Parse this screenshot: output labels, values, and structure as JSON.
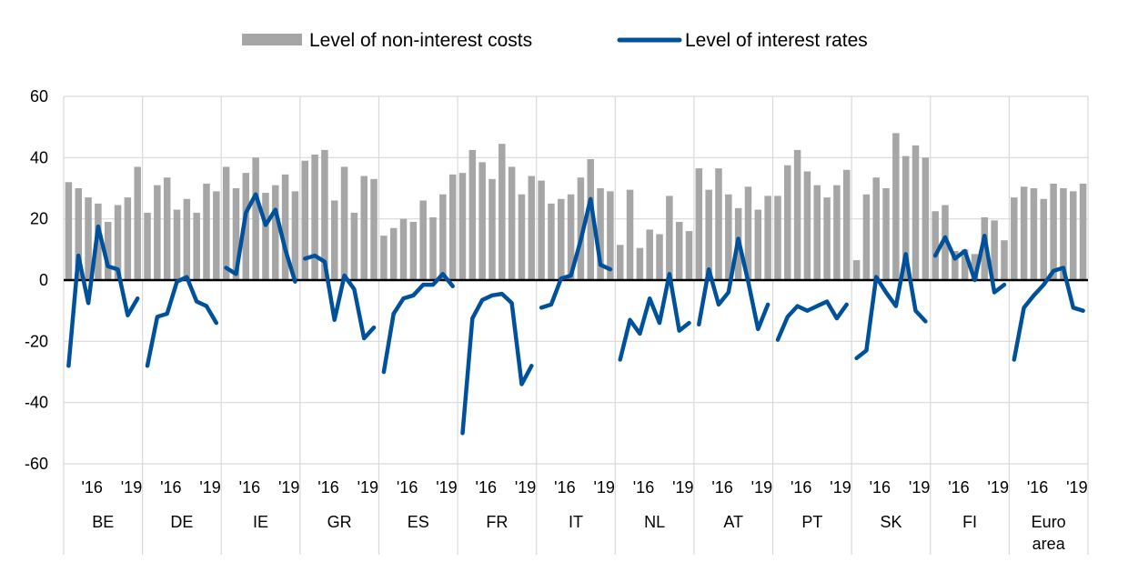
{
  "chart_data": {
    "type": "bar+line",
    "ylim": [
      -60,
      60
    ],
    "yticks": [
      -60,
      -40,
      -20,
      0,
      20,
      40,
      60
    ],
    "grid": true,
    "legend_position": "top",
    "colors": {
      "bars": "#a6a6a6",
      "line": "#00519b",
      "zero_line": "#000000",
      "grid": "#d9d9d9"
    },
    "legend": [
      {
        "label": "Level of non-interest costs",
        "kind": "bar"
      },
      {
        "label": "Level of interest rates",
        "kind": "line"
      }
    ],
    "year_ticks": [
      "'16",
      "'19"
    ],
    "groups": [
      {
        "label": "BE",
        "bars": [
          32,
          30,
          27,
          25,
          19,
          24.5,
          27,
          37
        ],
        "line": [
          -28,
          8,
          -7.5,
          17.5,
          4.5,
          3.5,
          -11.5,
          -6
        ]
      },
      {
        "label": "DE",
        "bars": [
          22,
          31,
          33.5,
          23,
          26.5,
          22,
          31.5,
          29
        ],
        "line": [
          -28,
          -12,
          -11,
          -0.5,
          1,
          -7,
          -8.5,
          -14
        ]
      },
      {
        "label": "IE",
        "bars": [
          37,
          30,
          35,
          40,
          28.5,
          31,
          34.5,
          29
        ],
        "line": [
          4,
          2,
          22,
          28,
          18,
          23,
          10,
          -0.5
        ]
      },
      {
        "label": "GR",
        "bars": [
          39,
          41,
          42.5,
          26,
          37,
          22,
          34,
          33
        ],
        "line": [
          7,
          8,
          6,
          -13,
          1.5,
          -3,
          -19,
          -15.5
        ]
      },
      {
        "label": "ES",
        "bars": [
          14.5,
          17,
          20,
          19,
          26,
          20.5,
          28,
          34.5
        ],
        "line": [
          -30,
          -11,
          -6,
          -5,
          -1.5,
          -1.5,
          2,
          -2
        ]
      },
      {
        "label": "FR",
        "bars": [
          35,
          42.5,
          38.5,
          33,
          44.5,
          37,
          28,
          34
        ],
        "line": [
          -50,
          -12.5,
          -6.5,
          -5,
          -4.5,
          -7.5,
          -34,
          -28
        ]
      },
      {
        "label": "IT",
        "bars": [
          32.5,
          25,
          26.5,
          28,
          33.5,
          39.5,
          30,
          29
        ],
        "line": [
          -9,
          -8,
          0.5,
          1.5,
          13,
          26.5,
          5,
          3.5
        ]
      },
      {
        "label": "NL",
        "bars": [
          11.5,
          29.5,
          10.5,
          16.5,
          15,
          27.5,
          19,
          16
        ],
        "line": [
          -26,
          -13,
          -17.5,
          -6,
          -14,
          2,
          -16.5,
          -14
        ]
      },
      {
        "label": "AT",
        "bars": [
          36.5,
          29.5,
          36.5,
          28,
          23.5,
          30.5,
          23,
          27.5
        ],
        "line": [
          -14.5,
          3.5,
          -8,
          -4,
          13.5,
          -0.5,
          -16,
          -8
        ]
      },
      {
        "label": "PT",
        "bars": [
          27.5,
          37.5,
          42.5,
          35.5,
          31,
          27,
          31,
          36
        ],
        "line": [
          -19.5,
          -12,
          -8.5,
          -10,
          -8.5,
          -7,
          -12.5,
          -8
        ]
      },
      {
        "label": "SK",
        "bars": [
          6.5,
          28,
          33.5,
          30,
          48,
          40.5,
          44,
          40
        ],
        "line": [
          -25.5,
          -23,
          1,
          -4,
          -8.5,
          8.5,
          -10,
          -13.5
        ]
      },
      {
        "label": "FI",
        "bars": [
          22.5,
          24.5,
          9.5,
          10,
          8.5,
          20.5,
          19.5,
          13
        ],
        "line": [
          8,
          14,
          7,
          9.5,
          0,
          14.5,
          -4,
          -1.5
        ]
      },
      {
        "label": "Euro area",
        "bars": [
          27,
          30.5,
          30,
          26.5,
          31.5,
          30,
          29,
          31.5
        ],
        "line": [
          -26,
          -9,
          -5,
          -1.5,
          3,
          4,
          -9,
          -10
        ]
      }
    ]
  }
}
